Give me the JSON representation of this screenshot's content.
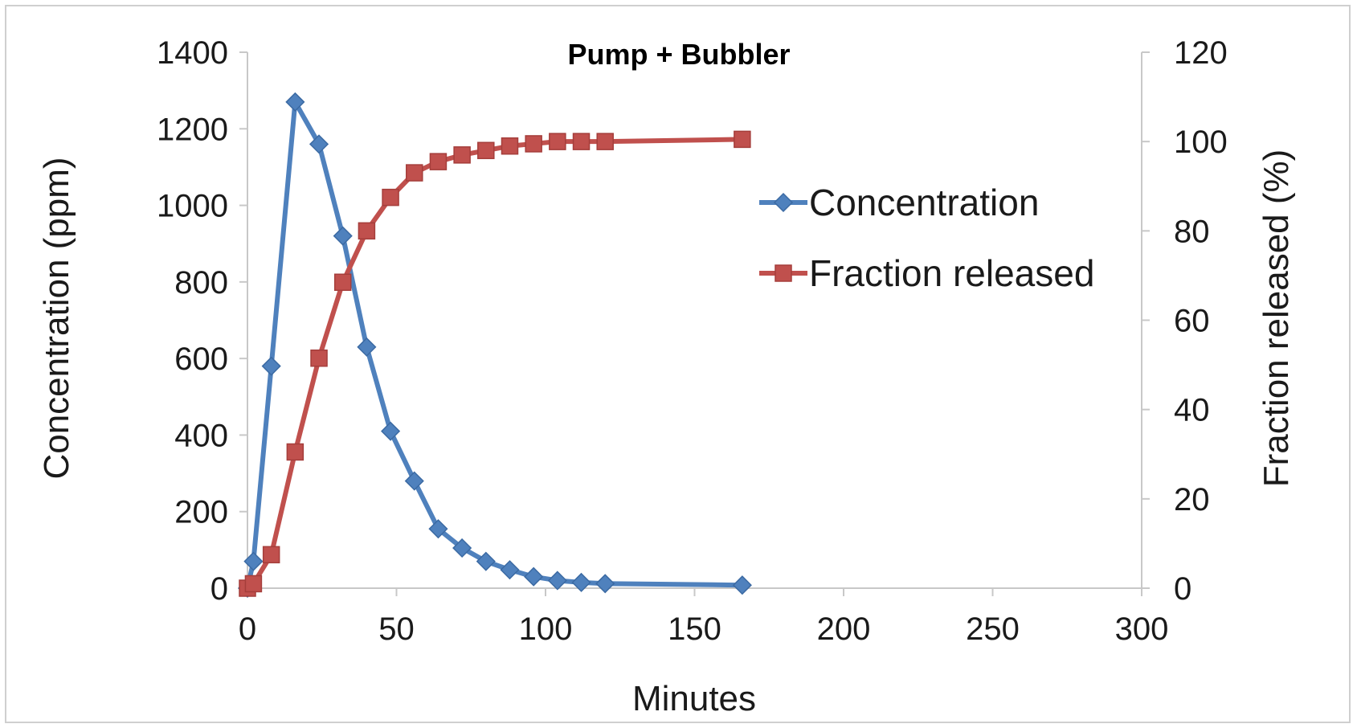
{
  "chart_data": {
    "type": "line",
    "title": "Pump + Bubbler",
    "xlabel": "Minutes",
    "ylabel": "Concentration (ppm)",
    "y2label": "Fraction released (%)",
    "xlim": [
      0,
      300
    ],
    "ylim": [
      0,
      1400
    ],
    "y2lim": [
      0,
      120
    ],
    "xticks": [
      0,
      50,
      100,
      150,
      200,
      250,
      300
    ],
    "yticks": [
      0,
      200,
      400,
      600,
      800,
      1000,
      1200,
      1400
    ],
    "y2ticks": [
      0,
      20,
      40,
      60,
      80,
      100,
      120
    ],
    "grid": false,
    "legend_position": "right",
    "series": [
      {
        "name": "Concentration",
        "axis": "left",
        "color": "#4f81bd",
        "marker": "diamond",
        "x": [
          0,
          2,
          8,
          16,
          24,
          32,
          40,
          48,
          56,
          64,
          72,
          80,
          88,
          96,
          104,
          112,
          120,
          166
        ],
        "y": [
          0,
          70,
          580,
          1270,
          1160,
          920,
          630,
          410,
          280,
          155,
          105,
          70,
          48,
          30,
          20,
          15,
          12,
          8
        ]
      },
      {
        "name": "Fraction released",
        "axis": "right",
        "color": "#c0504d",
        "marker": "square",
        "x": [
          0,
          2,
          8,
          16,
          24,
          32,
          40,
          48,
          56,
          64,
          72,
          80,
          88,
          96,
          104,
          112,
          120,
          166
        ],
        "y": [
          0,
          1,
          7.5,
          30.5,
          51.5,
          68.5,
          80,
          87.5,
          93,
          95.5,
          97,
          98,
          99,
          99.5,
          100,
          100,
          100,
          100.5
        ]
      }
    ]
  }
}
